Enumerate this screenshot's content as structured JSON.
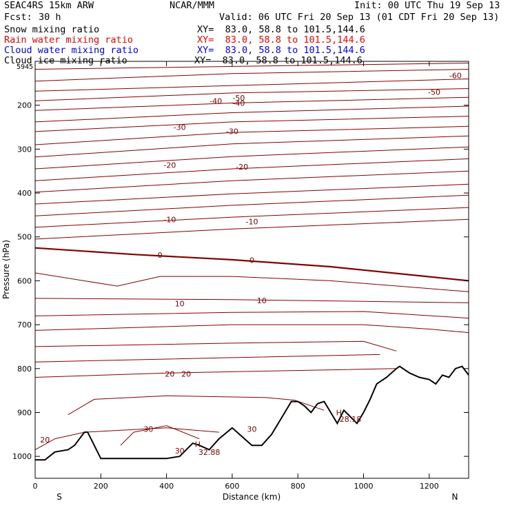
{
  "header": {
    "model": "SEAC4RS 15km ARW",
    "center": "NCAR/MMM",
    "init": "Init: 00 UTC Thu 19 Sep 13",
    "fcst_label": "Fcst:",
    "fcst_value": "30 h",
    "valid": "Valid: 06 UTC Fri 20 Sep 13 (01 CDT Fri 20 Sep 13)",
    "fields": [
      {
        "name": "Snow mixing ratio",
        "xy": "XY=  83.0, 58.8 to 101.5,144.6",
        "color": "#000000"
      },
      {
        "name": "Rain water mixing ratio",
        "xy": "XY=  83.0, 58.8 to 101.5,144.6",
        "color": "#ff0000"
      },
      {
        "name": "Cloud water mixing ratio",
        "xy": "XY=  83.0, 58.8 to 101.5,144.6",
        "color": "#0000ff"
      },
      {
        "name": "Cloud ice mixing ratio",
        "xy": "XY=  83.0, 58.8 to 101.5,144.6",
        "color": "#000000"
      }
    ],
    "top_corner_label": "5945"
  },
  "chart_data": {
    "type": "line",
    "title": "",
    "xlabel": "Distance (km)",
    "ylabel": "Pressure (hPa)",
    "xlim": [
      0,
      1320
    ],
    "ylim": [
      1050,
      100
    ],
    "x_ticks": [
      "0",
      "200",
      "400",
      "600",
      "800",
      "1000",
      "1200"
    ],
    "y_ticks": [
      "200",
      "300",
      "400",
      "500",
      "600",
      "700",
      "800",
      "900",
      "1000"
    ],
    "x_end_labels": {
      "left": "S",
      "right": "N"
    },
    "isotherm_color": "#800000",
    "terrain_color": "#000000",
    "isotherms": [
      {
        "x": [
          0,
          1320
        ],
        "y": [
          118,
          104
        ]
      },
      {
        "x": [
          0,
          600,
          1320
        ],
        "y": [
          145,
          128,
          118
        ]
      },
      {
        "x": [
          0,
          1320
        ],
        "y": [
          168,
          140
        ]
      },
      {
        "x": [
          0,
          600,
          1320
        ],
        "y": [
          190,
          172,
          162
        ]
      },
      {
        "x": [
          0,
          600,
          1320
        ],
        "y": [
          212,
          195,
          182
        ]
      },
      {
        "x": [
          0,
          600,
          1320
        ],
        "y": [
          238,
          217,
          202
        ]
      },
      {
        "x": [
          0,
          600,
          1320
        ],
        "y": [
          260,
          238,
          225
        ]
      },
      {
        "x": [
          0,
          600,
          1320
        ],
        "y": [
          290,
          262,
          248
        ]
      },
      {
        "x": [
          0,
          600,
          1320
        ],
        "y": [
          318,
          288,
          270
        ]
      },
      {
        "x": [
          0,
          600,
          1320
        ],
        "y": [
          345,
          317,
          295
        ]
      },
      {
        "x": [
          0,
          600,
          1320
        ],
        "y": [
          372,
          345,
          322
        ]
      },
      {
        "x": [
          0,
          600,
          1320
        ],
        "y": [
          398,
          372,
          350
        ]
      },
      {
        "x": [
          0,
          600,
          1320
        ],
        "y": [
          425,
          402,
          380
        ]
      },
      {
        "x": [
          0,
          600,
          1320
        ],
        "y": [
          452,
          428,
          405
        ]
      },
      {
        "x": [
          0,
          600,
          1320
        ],
        "y": [
          478,
          455,
          433
        ]
      },
      {
        "x": [
          0,
          600,
          1320
        ],
        "y": [
          505,
          482,
          460
        ]
      },
      {
        "x": [
          0,
          300,
          600,
          900,
          1320
        ],
        "y": [
          525,
          540,
          552,
          568,
          600
        ]
      },
      {
        "x": [
          0,
          250,
          380,
          600,
          900,
          1320
        ],
        "y": [
          582,
          612,
          590,
          590,
          600,
          625
        ]
      },
      {
        "x": [
          0,
          600,
          1320
        ],
        "y": [
          640,
          643,
          650
        ]
      },
      {
        "x": [
          0,
          600,
          1000,
          1320
        ],
        "y": [
          680,
          672,
          670,
          685
        ]
      },
      {
        "x": [
          0,
          600,
          1000,
          1200,
          1320
        ],
        "y": [
          713,
          700,
          700,
          710,
          718
        ]
      },
      {
        "x": [
          0,
          600,
          1000,
          1100
        ],
        "y": [
          750,
          742,
          738,
          760
        ]
      },
      {
        "x": [
          0,
          600,
          1050
        ],
        "y": [
          785,
          775,
          768
        ]
      },
      {
        "x": [
          0,
          400,
          1100
        ],
        "y": [
          820,
          810,
          800
        ]
      },
      {
        "x": [
          100,
          180,
          400,
          700,
          790,
          880
        ],
        "y": [
          905,
          870,
          862,
          866,
          872,
          895
        ]
      },
      {
        "x": [
          0,
          60,
          150,
          400,
          560
        ],
        "y": [
          985,
          960,
          945,
          935,
          945
        ]
      },
      {
        "x": [
          260,
          300,
          400,
          500
        ],
        "y": [
          975,
          945,
          930,
          960
        ]
      }
    ],
    "isotherm_labels": [
      {
        "text": "-60",
        "x": 1280,
        "y": 132
      },
      {
        "text": "-50",
        "x": 620,
        "y": 183
      },
      {
        "text": "-50",
        "x": 1215,
        "y": 170
      },
      {
        "text": "-40",
        "x": 550,
        "y": 190
      },
      {
        "text": "-40",
        "x": 620,
        "y": 195
      },
      {
        "text": "-30",
        "x": 440,
        "y": 250
      },
      {
        "text": "-30",
        "x": 600,
        "y": 259
      },
      {
        "text": "-20",
        "x": 410,
        "y": 336
      },
      {
        "text": "-20",
        "x": 630,
        "y": 340
      },
      {
        "text": "-10",
        "x": 410,
        "y": 460
      },
      {
        "text": "-10",
        "x": 660,
        "y": 465
      },
      {
        "text": "0",
        "x": 380,
        "y": 541
      },
      {
        "text": "0",
        "x": 660,
        "y": 553
      },
      {
        "text": "10",
        "x": 440,
        "y": 652
      },
      {
        "text": "10",
        "x": 690,
        "y": 645
      },
      {
        "text": "20",
        "x": 410,
        "y": 812
      },
      {
        "text": "20",
        "x": 460,
        "y": 812
      },
      {
        "text": "30",
        "x": 345,
        "y": 938
      },
      {
        "text": "30",
        "x": 660,
        "y": 938
      },
      {
        "text": "30",
        "x": 440,
        "y": 987
      },
      {
        "text": "20",
        "x": 30,
        "y": 962
      },
      {
        "text": "H",
        "x": 495,
        "y": 972
      },
      {
        "text": "32.88",
        "x": 530,
        "y": 990
      },
      {
        "text": "H",
        "x": 925,
        "y": 900
      },
      {
        "text": "28.18",
        "x": 960,
        "y": 915
      }
    ],
    "terrain": {
      "x": [
        0,
        30,
        60,
        100,
        120,
        150,
        160,
        200,
        260,
        360,
        400,
        440,
        460,
        480,
        500,
        530,
        560,
        600,
        630,
        660,
        690,
        720,
        760,
        780,
        800,
        820,
        840,
        860,
        880,
        900,
        920,
        940,
        960,
        980,
        1000,
        1020,
        1040,
        1070,
        1100,
        1110,
        1140,
        1170,
        1200,
        1220,
        1240,
        1260,
        1280,
        1300,
        1320
      ],
      "y": [
        1008,
        1008,
        990,
        985,
        975,
        945,
        945,
        1005,
        1005,
        1005,
        1005,
        1000,
        985,
        970,
        975,
        985,
        960,
        935,
        955,
        975,
        975,
        950,
        900,
        875,
        875,
        885,
        900,
        880,
        875,
        900,
        925,
        895,
        910,
        925,
        900,
        870,
        835,
        820,
        800,
        795,
        810,
        820,
        825,
        835,
        815,
        820,
        800,
        795,
        815
      ]
    }
  }
}
